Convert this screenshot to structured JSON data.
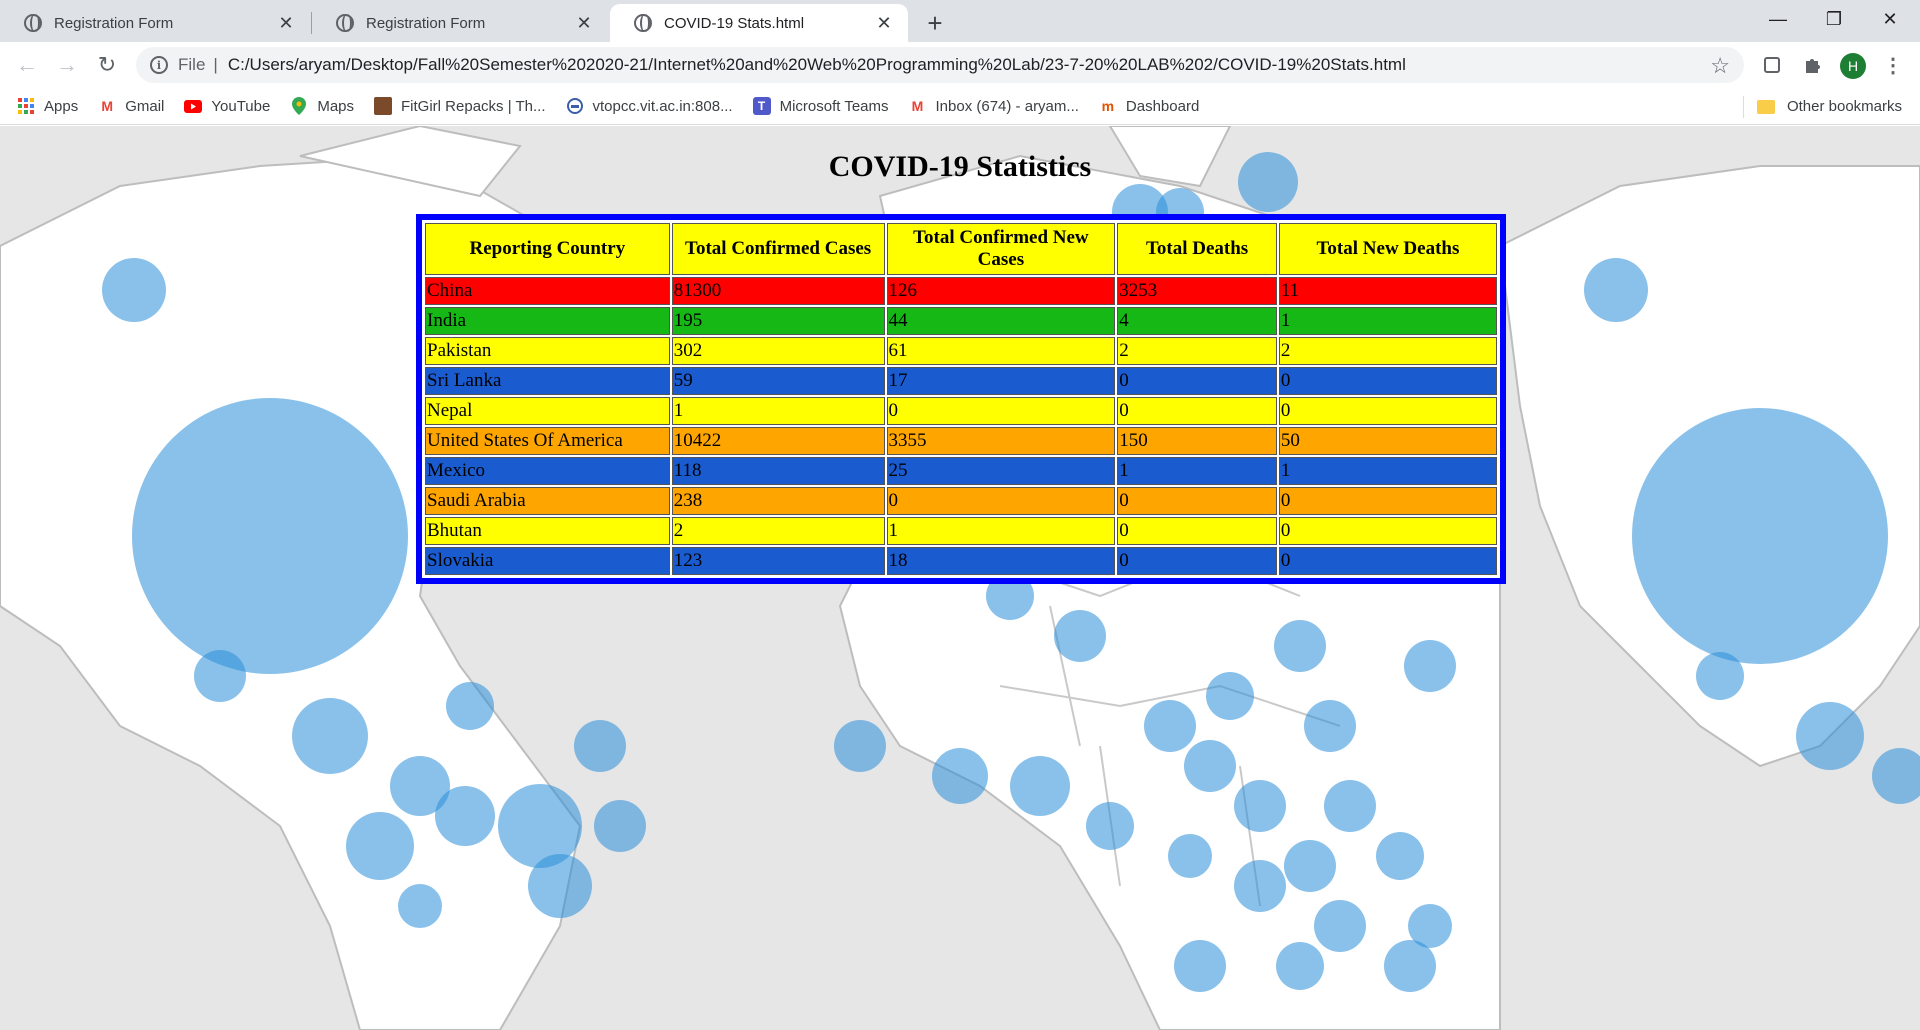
{
  "browser": {
    "tabs": [
      {
        "title": "Registration Form",
        "active": false
      },
      {
        "title": "Registration Form",
        "active": false
      },
      {
        "title": "COVID-19 Stats.html",
        "active": true
      }
    ],
    "address": {
      "scheme_label": "File",
      "url": "C:/Users/aryam/Desktop/Fall%20Semester%202020-21/Internet%20and%20Web%20Programming%20Lab/23-7-20%20LAB%202/COVID-19%20Stats.html"
    },
    "profile_initial": "H",
    "bookmarks": [
      {
        "label": "Apps",
        "icon": "apps-grid-icon"
      },
      {
        "label": "Gmail",
        "icon": "gmail-icon"
      },
      {
        "label": "YouTube",
        "icon": "youtube-icon"
      },
      {
        "label": "Maps",
        "icon": "maps-pin-icon"
      },
      {
        "label": "FitGirl Repacks | Th...",
        "icon": "fitgirl-icon"
      },
      {
        "label": "vtopcc.vit.ac.in:808...",
        "icon": "vtop-icon"
      },
      {
        "label": "Microsoft Teams",
        "icon": "teams-icon"
      },
      {
        "label": "Inbox (674) - aryam...",
        "icon": "gmail-icon"
      },
      {
        "label": "Dashboard",
        "icon": "dashboard-icon"
      }
    ],
    "other_bookmarks": "Other bookmarks"
  },
  "page": {
    "title": "COVID-19 Statistics",
    "table": {
      "headers": [
        "Reporting Country",
        "Total Confirmed Cases",
        "Total Confirmed New Cases",
        "Total Deaths",
        "Total New Deaths"
      ],
      "rows": [
        {
          "cells": [
            "China",
            "81300",
            "126",
            "3253",
            "11"
          ],
          "color": "red"
        },
        {
          "cells": [
            "India",
            "195",
            "44",
            "4",
            "1"
          ],
          "color": "green"
        },
        {
          "cells": [
            "Pakistan",
            "302",
            "61",
            "2",
            "2"
          ],
          "color": "yellow"
        },
        {
          "cells": [
            "Sri Lanka",
            "59",
            "17",
            "0",
            "0"
          ],
          "color": "blue"
        },
        {
          "cells": [
            "Nepal",
            "1",
            "0",
            "0",
            "0"
          ],
          "color": "yellow"
        },
        {
          "cells": [
            "United States Of America",
            "10422",
            "3355",
            "150",
            "50"
          ],
          "color": "orange"
        },
        {
          "cells": [
            "Mexico",
            "118",
            "25",
            "1",
            "1"
          ],
          "color": "blue"
        },
        {
          "cells": [
            "Saudi Arabia",
            "238",
            "0",
            "0",
            "0"
          ],
          "color": "orange"
        },
        {
          "cells": [
            "Bhutan",
            "2",
            "1",
            "0",
            "0"
          ],
          "color": "yellow"
        },
        {
          "cells": [
            "Slovakia",
            "123",
            "18",
            "0",
            "0"
          ],
          "color": "blue"
        }
      ]
    }
  },
  "colors": {
    "red": "#ff0000",
    "green": "#16b816",
    "yellow": "#ffff00",
    "blue": "#1a5bd0",
    "orange": "#ffa500",
    "table_border": "#0000ff"
  }
}
